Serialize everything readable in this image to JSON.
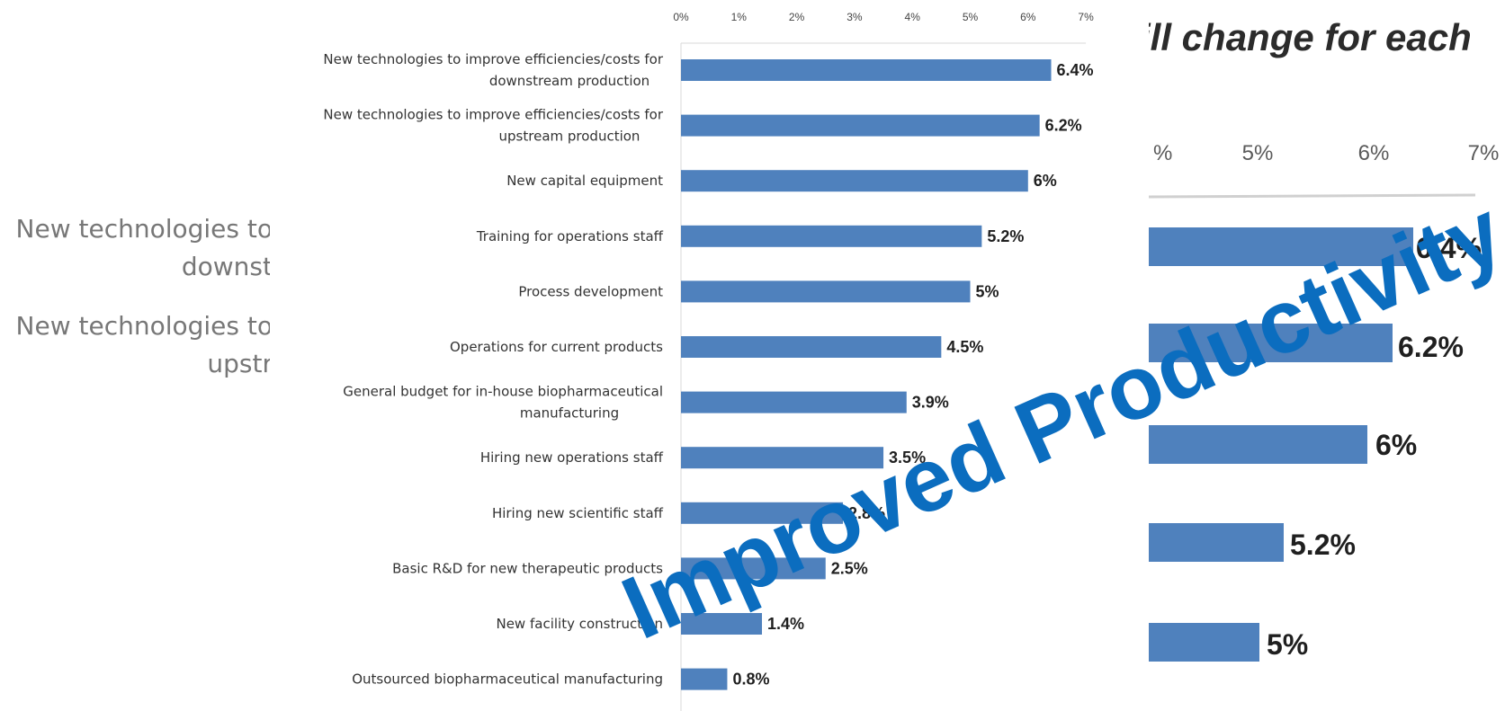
{
  "background": {
    "title_fragment": "ill change for each",
    "ticks": [
      "%",
      "5%",
      "6%",
      "7%"
    ],
    "labels": [
      [
        "New technologies to",
        "downst"
      ],
      [
        "New technologies to",
        "upstr"
      ]
    ],
    "values": [
      "6.4%",
      "6.2%",
      "6%",
      "5.2%",
      "5%"
    ]
  },
  "watermark": {
    "text": "Improved Productivity",
    "color": "#0b6dbf"
  },
  "chart_data": {
    "type": "bar",
    "orientation": "horizontal",
    "xlim": [
      0,
      7
    ],
    "xticks": [
      "0%",
      "1%",
      "2%",
      "3%",
      "4%",
      "5%",
      "6%",
      "7%"
    ],
    "bar_color": "#4f81bd",
    "categories": [
      [
        "New technologies to improve efficiencies/costs for",
        "downstream production"
      ],
      [
        "New technologies to improve efficiencies/costs for",
        "upstream production"
      ],
      [
        "New capital equipment"
      ],
      [
        "Training for operations staff"
      ],
      [
        "Process development"
      ],
      [
        "Operations for current products"
      ],
      [
        "General budget for in-house biopharmaceutical",
        "manufacturing"
      ],
      [
        "Hiring new operations staff"
      ],
      [
        "Hiring new scientific staff"
      ],
      [
        "Basic R&D for new therapeutic products"
      ],
      [
        "New facility construction"
      ],
      [
        "Outsourced biopharmaceutical manufacturing"
      ]
    ],
    "values": [
      6.4,
      6.2,
      6.0,
      5.2,
      5.0,
      4.5,
      3.9,
      3.5,
      2.8,
      2.5,
      1.4,
      0.8
    ],
    "data_labels": [
      "6.4%",
      "6.2%",
      "6%",
      "5.2%",
      "5%",
      "4.5%",
      "3.9%",
      "3.5%",
      "2.8%",
      "2.5%",
      "1.4%",
      "0.8%"
    ]
  }
}
